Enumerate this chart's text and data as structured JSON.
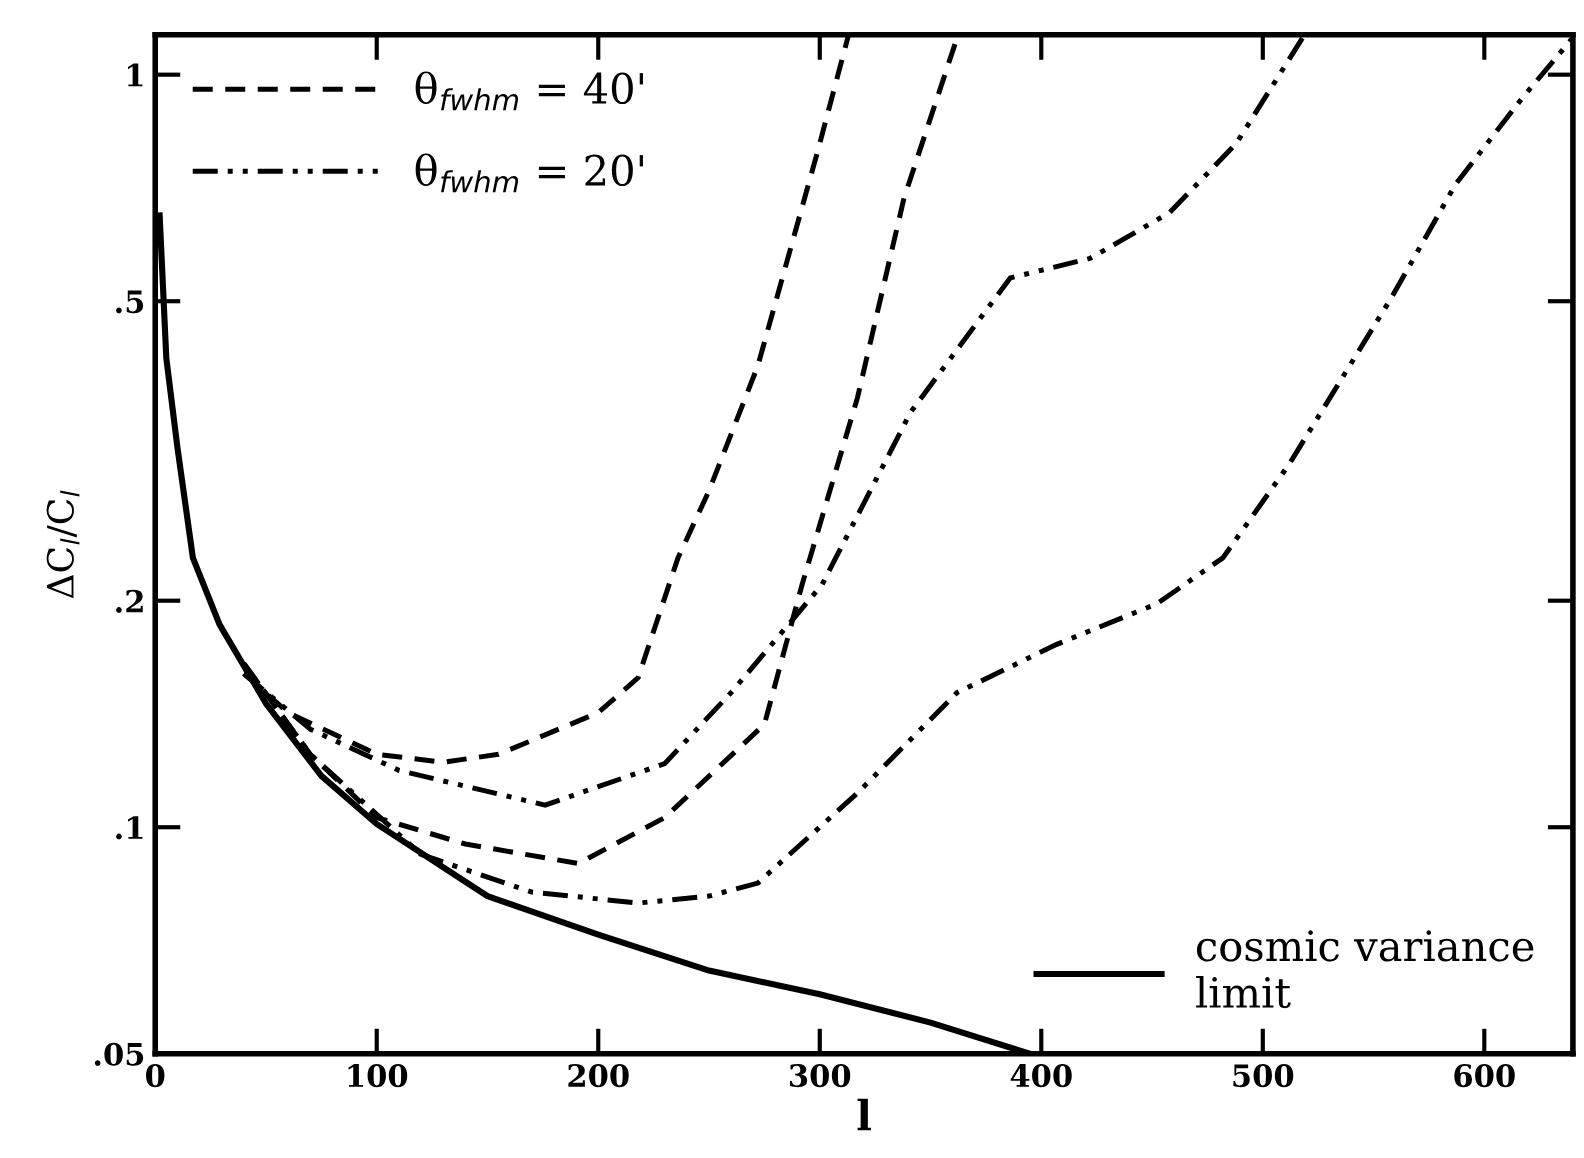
{
  "chart_data": {
    "type": "line",
    "xlabel": "l",
    "ylabel": "ΔC$_{l}$/C$_{l}$",
    "log": "y",
    "legend": "top left",
    "grid": false,
    "xlim": [
      0,
      640
    ],
    "xticks": [
      {
        "value": 0,
        "label": "0"
      },
      100,
      200,
      300,
      400,
      500,
      600
    ],
    "ylim": [
      0.05,
      1.13
    ],
    "yticks": [
      {
        "value": 0.05,
        "label": ".05"
      },
      {
        "value": 0.1,
        "label": ".1"
      },
      {
        "value": 0.2,
        "label": ".2"
      },
      {
        "value": 0.5,
        "label": ".5"
      },
      1
    ],
    "series": [
      {
        "name": "cosmic variance\nlimit",
        "color": "#000000",
        "line_style": "solid",
        "x": [
          2,
          5,
          10,
          17,
          29,
          50,
          75,
          100,
          150,
          200,
          250,
          300,
          350,
          395
        ],
        "values": [
          0.65,
          0.42,
          0.32,
          0.228,
          0.186,
          0.146,
          0.117,
          0.101,
          0.081,
          0.072,
          0.0645,
          0.06,
          0.055,
          0.05
        ]
      },
      {
        "name": "θ$_{fwhm}$ = 40'",
        "color": "#000000",
        "line_style": "dashed",
        "x": [
          40,
          60,
          100,
          130,
          155,
          200,
          218,
          236,
          250,
          272,
          299,
          313
        ],
        "values": [
          0.16,
          0.142,
          0.125,
          0.122,
          0.125,
          0.142,
          0.158,
          0.228,
          0.28,
          0.41,
          0.79,
          1.13
        ]
      },
      {
        "color": "#000000",
        "line_style": "dashed",
        "x": [
          40,
          70,
          100,
          140,
          191,
          230,
          275,
          292,
          317,
          338,
          362
        ],
        "values": [
          0.165,
          0.125,
          0.103,
          0.095,
          0.0895,
          0.103,
          0.137,
          0.21,
          0.372,
          0.685,
          1.12
        ]
      },
      {
        "name": "θ$_{fwhm}$ = 20'",
        "color": "#000000",
        "line_style": "dashdot",
        "x": [
          40,
          70,
          110,
          176,
          230,
          260,
          301,
          341,
          386,
          422,
          458,
          488,
          518
        ],
        "values": [
          0.16,
          0.135,
          0.119,
          0.107,
          0.1215,
          0.151,
          0.21,
          0.356,
          0.537,
          0.57,
          0.656,
          0.81,
          1.12
        ]
      },
      {
        "color": "#000000",
        "line_style": "dashdot",
        "x": [
          40,
          70,
          120,
          170,
          218,
          250,
          272,
          317,
          362,
          407,
          452,
          482,
          512,
          558,
          587,
          617,
          640
        ],
        "values": [
          0.165,
          0.125,
          0.092,
          0.082,
          0.0793,
          0.081,
          0.0843,
          0.111,
          0.151,
          0.175,
          0.198,
          0.228,
          0.304,
          0.505,
          0.715,
          0.93,
          1.12
        ]
      }
    ]
  }
}
